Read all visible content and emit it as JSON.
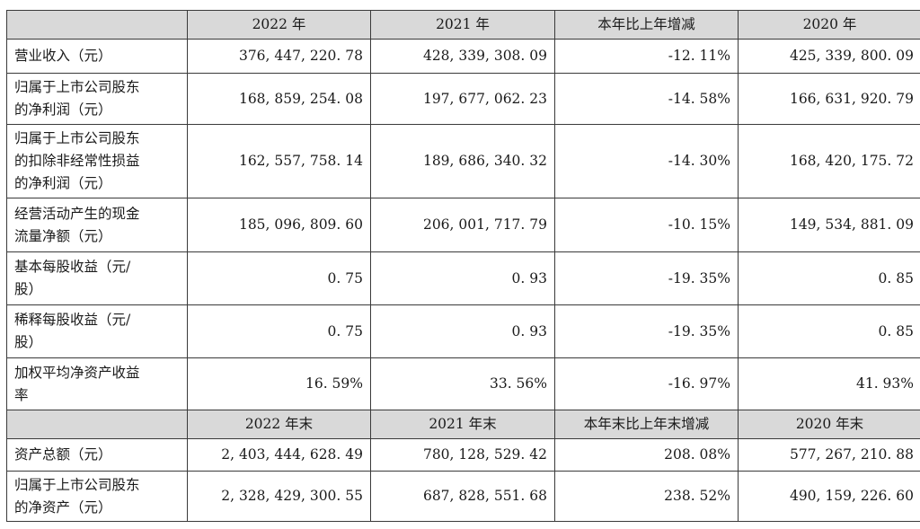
{
  "header1": {
    "col1": "2022 年",
    "col2": "2021 年",
    "col3": "本年比上年增减",
    "col4": "2020 年"
  },
  "rows1": [
    {
      "label": "营业收入（元）",
      "v2022": "376, 447, 220. 78",
      "v2021": "428, 339, 308. 09",
      "change": "-12. 11%",
      "v2020": "425, 339, 800. 09"
    },
    {
      "label_line1": "归属于上市公司股东",
      "label_line2": "的净利润（元）",
      "v2022": "168, 859, 254. 08",
      "v2021": "197, 677, 062. 23",
      "change": "-14. 58%",
      "v2020": "166, 631, 920. 79"
    },
    {
      "label_line1": "归属于上市公司股东",
      "label_line2": "的扣除非经常性损益",
      "label_line3": "的净利润（元）",
      "v2022": "162, 557, 758. 14",
      "v2021": "189, 686, 340. 32",
      "change": "-14. 30%",
      "v2020": "168, 420, 175. 72"
    },
    {
      "label_line1": "经营活动产生的现金",
      "label_line2": "流量净额（元）",
      "v2022": "185, 096, 809. 60",
      "v2021": "206, 001, 717. 79",
      "change": "-10. 15%",
      "v2020": "149, 534, 881. 09"
    },
    {
      "label_line1": "基本每股收益（元/",
      "label_line2": "股）",
      "v2022": "0. 75",
      "v2021": "0. 93",
      "change": "-19. 35%",
      "v2020": "0. 85"
    },
    {
      "label_line1": "稀释每股收益（元/",
      "label_line2": "股）",
      "v2022": "0. 75",
      "v2021": "0. 93",
      "change": "-19. 35%",
      "v2020": "0. 85"
    },
    {
      "label_line1": "加权平均净资产收益",
      "label_line2": "率",
      "v2022": "16. 59%",
      "v2021": "33. 56%",
      "change": "-16. 97%",
      "v2020": "41. 93%"
    }
  ],
  "header2": {
    "col1": "2022 年末",
    "col2": "2021 年末",
    "col3": "本年末比上年末增减",
    "col4": "2020 年末"
  },
  "rows2": [
    {
      "label": "资产总额（元）",
      "v2022": "2, 403, 444, 628. 49",
      "v2021": "780, 128, 529. 42",
      "change": "208. 08%",
      "v2020": "577, 267, 210. 88"
    },
    {
      "label_line1": "归属于上市公司股东",
      "label_line2": "的净资产（元）",
      "v2022": "2, 328, 429, 300. 55",
      "v2021": "687, 828, 551. 68",
      "change": "238. 52%",
      "v2020": "490, 159, 226. 60"
    }
  ]
}
